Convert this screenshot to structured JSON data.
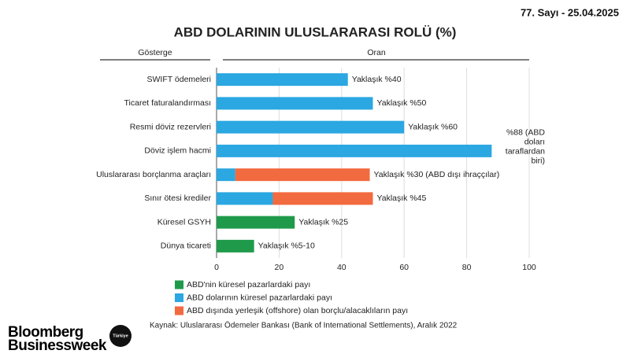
{
  "issue": "77. Sayı - 25.04.2025",
  "chart_data": {
    "type": "stacked-barh",
    "title": "ABD DOLARININ ULUSLARARASI ROLÜ (%)",
    "category_header": "Gösterge",
    "value_header": "Oran",
    "categories": [
      "SWIFT ödemeleri",
      "Ticaret faturalandırması",
      "Resmi döviz rezervleri",
      "Döviz işlem hacmi",
      "Uluslararası borçlanma araçları",
      "Sınır ötesi krediler",
      "Küresel GSYH",
      "Dünya ticareti"
    ],
    "series": [
      {
        "name": "ABD'nin küresel pazarlardaki payı",
        "color": "#1f9a4b",
        "values": [
          null,
          null,
          null,
          null,
          null,
          null,
          25,
          12
        ]
      },
      {
        "name": "ABD dolarının küresel pazarlardaki payı",
        "color": "#2ba7e1",
        "values": [
          42,
          50,
          60,
          88,
          6,
          18,
          null,
          null
        ]
      },
      {
        "name": "ABD dışında yerleşik (offshore) olan borçlu/alacaklıların payı",
        "color": "#f26a3f",
        "values": [
          null,
          null,
          null,
          null,
          43,
          32,
          null,
          null
        ]
      }
    ],
    "bar_labels": [
      "Yaklaşık %40",
      "Yaklaşık %50",
      "Yaklaşık %60",
      [
        "%88 (ABD",
        "doları",
        "taraflardan",
        "biri)"
      ],
      "Yaklaşık %30 (ABD dışı ihraççılar)",
      "Yaklaşık %45",
      "Yaklaşık %25",
      "Yaklaşık %5-10"
    ],
    "xlim": [
      0,
      100
    ],
    "xticks": [
      0,
      20,
      40,
      60,
      80,
      100
    ],
    "grid": true,
    "source": "Kaynak: Uluslararası Ödemeler Bankası (Bank of International Settlements), Aralık 2022"
  },
  "logo": {
    "lines": [
      "Bloomberg",
      "Businessweek"
    ],
    "badge": "Türkiye"
  }
}
